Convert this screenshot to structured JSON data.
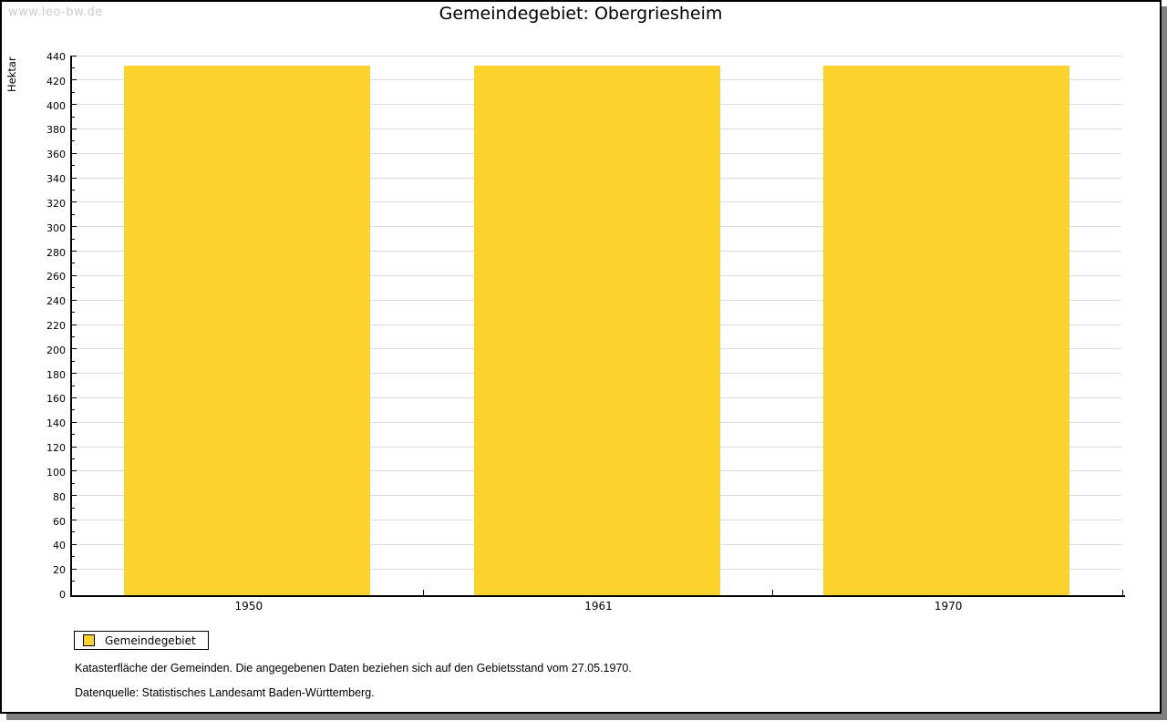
{
  "watermark": "www.leo-bw.de",
  "title": "Gemeindegebiet: Obergriesheim",
  "chart_data": {
    "type": "bar",
    "categories": [
      "1950",
      "1961",
      "1970"
    ],
    "series": [
      {
        "name": "Gemeindegebiet",
        "values": [
          433,
          433,
          433
        ]
      }
    ],
    "title": "Gemeindegebiet: Obergriesheim",
    "xlabel": "",
    "ylabel": "Hektar",
    "ylim": [
      0,
      440
    ],
    "y_major_step": 20,
    "y_minor_step": 10,
    "grid": true,
    "bar_color": "#FCD32D",
    "legend_position": "bottom-left"
  },
  "legend": {
    "items": [
      {
        "label": "Gemeindegebiet",
        "color": "#FCD32D"
      }
    ]
  },
  "footer": {
    "line1": "Katasterfläche der Gemeinden. Die angegebenen Daten beziehen sich auf den Gebietsstand vom 27.05.1970.",
    "line2": "Datenquelle: Statistisches Landesamt Baden-Württemberg."
  },
  "colors": {
    "grid": "#dcdcdc",
    "axis": "#000000",
    "frame_shadow": "#7f7f7f",
    "watermark": "#cccccc"
  }
}
